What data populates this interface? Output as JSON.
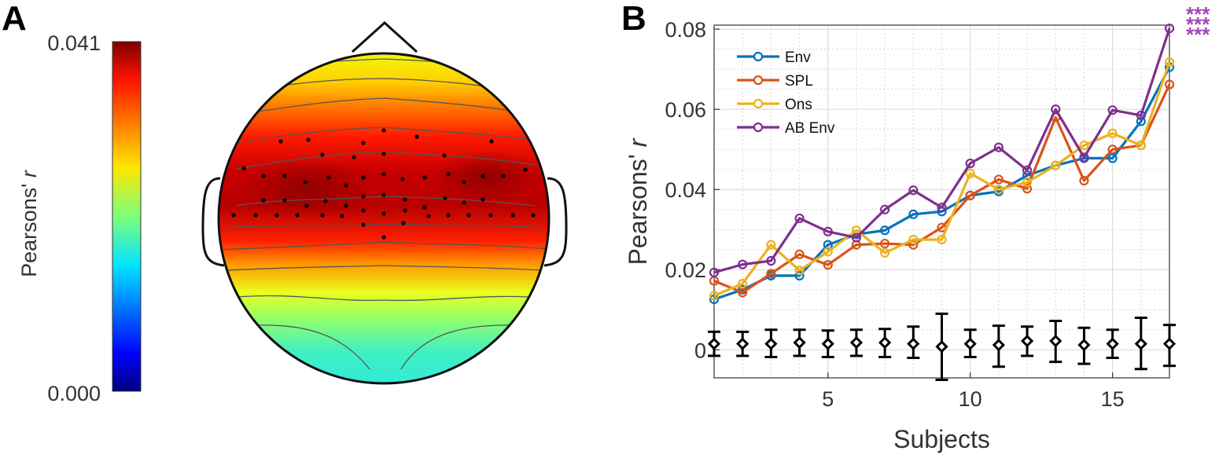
{
  "panels": {
    "a_letter": "A",
    "b_letter": "B"
  },
  "colorbar": {
    "max_label": "0.041",
    "min_label": "0.000",
    "label_main": "Pearsons' ",
    "label_italic": "r",
    "colormap": "jet",
    "range": [
      0.0,
      0.041
    ]
  },
  "topoplot": {
    "colormap": "jet",
    "pattern": "fronto-central maximum, decreasing toward occipital",
    "electrode_count": 48
  },
  "chart_data": {
    "type": "line",
    "xlabel": "Subjects",
    "ylabel_main": "Pearsons' ",
    "ylabel_italic": "r",
    "xlim": [
      1,
      17
    ],
    "ylim": [
      -0.007,
      0.081
    ],
    "xticks": [
      5,
      10,
      15
    ],
    "yticks": [
      0,
      0.02,
      0.04,
      0.06,
      0.08
    ],
    "ytick_labels": [
      "0",
      "0.02",
      "0.04",
      "0.06",
      "0.08"
    ],
    "grid": true,
    "legend_position": "top-left",
    "x": [
      1,
      2,
      3,
      4,
      5,
      6,
      7,
      8,
      9,
      10,
      11,
      12,
      13,
      14,
      15,
      16,
      17
    ],
    "series": [
      {
        "name": "Env",
        "color": "#0072BD",
        "values": [
          0.0126,
          0.015,
          0.0185,
          0.0185,
          0.0262,
          0.0288,
          0.0298,
          0.0338,
          0.0345,
          0.0385,
          0.0395,
          0.0435,
          0.046,
          0.0478,
          0.0478,
          0.057,
          0.0705
        ]
      },
      {
        "name": "SPL",
        "color": "#D95319",
        "values": [
          0.0172,
          0.0143,
          0.019,
          0.0238,
          0.0212,
          0.0262,
          0.0265,
          0.0262,
          0.0305,
          0.0385,
          0.0425,
          0.0402,
          0.058,
          0.0422,
          0.05,
          0.051,
          0.0662
        ]
      },
      {
        "name": "Ons",
        "color": "#EDB120",
        "values": [
          0.0135,
          0.0165,
          0.0262,
          0.0198,
          0.0245,
          0.0298,
          0.0242,
          0.0275,
          0.0275,
          0.044,
          0.04,
          0.0418,
          0.046,
          0.051,
          0.054,
          0.051,
          0.0718
        ]
      },
      {
        "name": "AB Env",
        "color": "#7E2F8E",
        "values": [
          0.0193,
          0.0213,
          0.0222,
          0.0328,
          0.0295,
          0.028,
          0.035,
          0.0398,
          0.0355,
          0.0465,
          0.0505,
          0.0448,
          0.06,
          0.048,
          0.0598,
          0.0585,
          0.0802
        ]
      }
    ],
    "null_errorbars": {
      "color": "#000000",
      "mean": [
        0.0015,
        0.0015,
        0.0015,
        0.0018,
        0.0015,
        0.0018,
        0.0018,
        0.0015,
        0.0008,
        0.0015,
        0.0012,
        0.0022,
        0.0022,
        0.0012,
        0.0015,
        0.0015,
        0.0015
      ],
      "lower": [
        -0.0015,
        -0.0015,
        -0.0018,
        -0.0015,
        -0.0018,
        -0.0015,
        -0.0018,
        -0.002,
        -0.0075,
        -0.0018,
        -0.0042,
        -0.0015,
        -0.003,
        -0.0035,
        -0.002,
        -0.0048,
        -0.004
      ],
      "upper": [
        0.0045,
        0.0045,
        0.005,
        0.005,
        0.0048,
        0.005,
        0.0052,
        0.0058,
        0.009,
        0.005,
        0.006,
        0.0058,
        0.0072,
        0.0055,
        0.005,
        0.008,
        0.0062
      ]
    },
    "significance": {
      "text": "***",
      "repeat": 3,
      "color": "#A347B8"
    }
  }
}
